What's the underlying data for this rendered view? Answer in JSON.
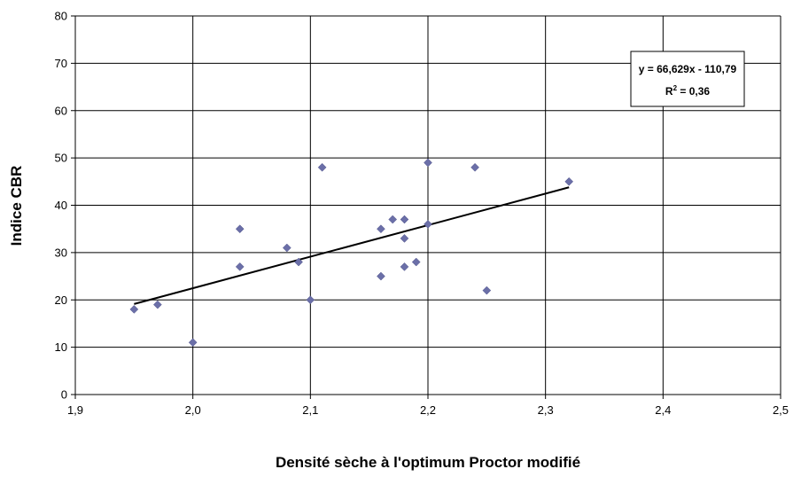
{
  "chart_data": {
    "type": "scatter",
    "title": "",
    "xlabel": "Densité sèche à l'optimum Proctor modifié",
    "ylabel": "Indice CBR",
    "xlim": [
      1.9,
      2.5
    ],
    "ylim": [
      0,
      80
    ],
    "x_ticks": [
      1.9,
      2.0,
      2.1,
      2.2,
      2.3,
      2.4,
      2.5
    ],
    "x_tick_labels": [
      "1,9",
      "2,0",
      "2,1",
      "2,2",
      "2,3",
      "2,4",
      "2,5"
    ],
    "y_ticks": [
      0,
      10,
      20,
      30,
      40,
      50,
      60,
      70,
      80
    ],
    "y_tick_labels": [
      "0",
      "10",
      "20",
      "30",
      "40",
      "50",
      "60",
      "70",
      "80"
    ],
    "grid": true,
    "marker": "diamond",
    "marker_color": "#6b6fa8",
    "trendline_color": "#000000",
    "points": [
      {
        "x": 1.95,
        "y": 18
      },
      {
        "x": 1.97,
        "y": 19
      },
      {
        "x": 2.0,
        "y": 11
      },
      {
        "x": 2.04,
        "y": 35
      },
      {
        "x": 2.04,
        "y": 27
      },
      {
        "x": 2.08,
        "y": 31
      },
      {
        "x": 2.09,
        "y": 28
      },
      {
        "x": 2.1,
        "y": 20
      },
      {
        "x": 2.11,
        "y": 48
      },
      {
        "x": 2.16,
        "y": 35
      },
      {
        "x": 2.16,
        "y": 25
      },
      {
        "x": 2.17,
        "y": 37
      },
      {
        "x": 2.18,
        "y": 37
      },
      {
        "x": 2.18,
        "y": 33
      },
      {
        "x": 2.18,
        "y": 27
      },
      {
        "x": 2.19,
        "y": 28
      },
      {
        "x": 2.2,
        "y": 49
      },
      {
        "x": 2.2,
        "y": 36
      },
      {
        "x": 2.24,
        "y": 48
      },
      {
        "x": 2.25,
        "y": 22
      },
      {
        "x": 2.32,
        "y": 45
      }
    ],
    "trendline": {
      "slope": 66.629,
      "intercept": -110.79,
      "x_start": 1.95,
      "x_end": 2.32,
      "equation_label": "y = 66,629x - 110,79",
      "r2_prefix": "R",
      "r2_exponent": "2",
      "r2_value": " = 0,36"
    }
  }
}
